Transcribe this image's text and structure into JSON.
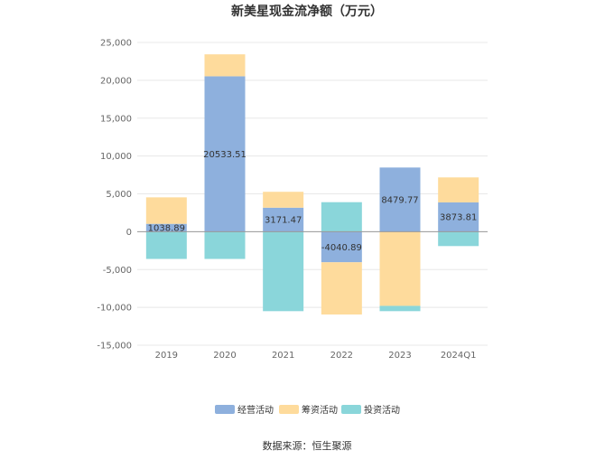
{
  "chart_data": {
    "type": "bar",
    "stacked": true,
    "title": "新美星现金流净额（万元）",
    "categories": [
      "2019",
      "2020",
      "2021",
      "2022",
      "2023",
      "2024Q1"
    ],
    "ylim": [
      -15000,
      25000
    ],
    "yticks": [
      "25,000",
      "20,000",
      "15,000",
      "10,000",
      "5,000",
      "0",
      "-5,000",
      "-10,000",
      "-15,000"
    ],
    "ytick_values": [
      25000,
      20000,
      15000,
      10000,
      5000,
      0,
      -5000,
      -10000,
      -15000
    ],
    "grid": true,
    "legend_position": "bottom",
    "series": [
      {
        "name": "经营活动",
        "color": "#8eb0dd",
        "values": [
          1038.89,
          20533.51,
          3171.47,
          -4040.89,
          8479.77,
          3873.81
        ],
        "labels": [
          "1038.89",
          "20533.51",
          "3171.47",
          "-4040.89",
          "8479.77",
          "3873.81"
        ]
      },
      {
        "name": "筹资活动",
        "color": "#fedb9c",
        "values": [
          3500,
          2900,
          2100,
          -6900,
          -9800,
          3300
        ]
      },
      {
        "name": "投资活动",
        "color": "#8ad6da",
        "values": [
          -3600,
          -3600,
          -10500,
          3900,
          -700,
          -1900
        ]
      }
    ]
  },
  "source": "数据来源：恒生聚源"
}
